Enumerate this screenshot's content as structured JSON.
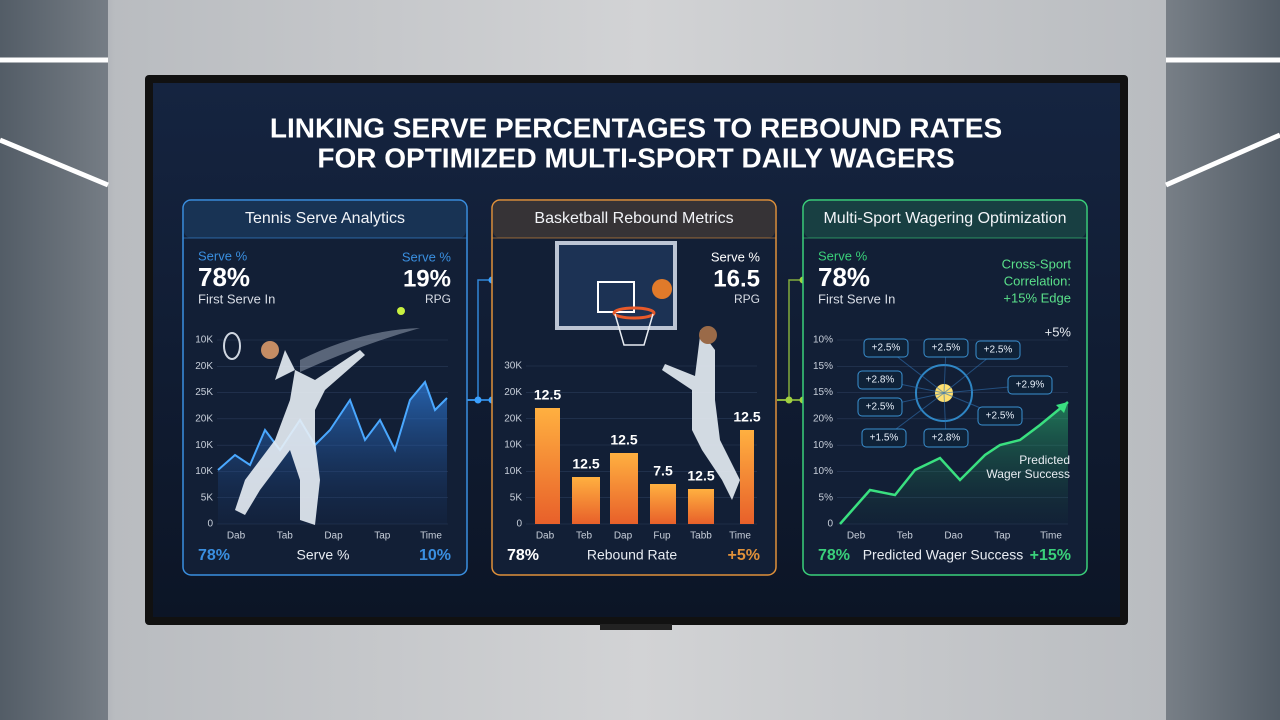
{
  "title": [
    "LINKING SERVE PERCENTAGES TO REBOUND RATES",
    "FOR OPTIMIZED MULTI-SPORT DAILY WAGERS"
  ],
  "panels": [
    {
      "header": "Tennis Serve Analytics",
      "left_stat": {
        "label": "Serve %",
        "value": "78%",
        "caption": "First Serve In"
      },
      "right_stat": {
        "label": "Serve %",
        "value": "19%",
        "caption": "RPG"
      },
      "y_axis": [
        "10K",
        "20K",
        "25K",
        "20K",
        "10K",
        "10K",
        "5K",
        "0"
      ],
      "x_axis": [
        "Dab",
        "Tab",
        "Dap",
        "Tap",
        "Time"
      ],
      "footer": {
        "left": "78%",
        "center": "Serve %",
        "right": "10%"
      }
    },
    {
      "header": "Basketball Rebound Metrics",
      "right_stat": {
        "label": "Serve %",
        "value": "16.5",
        "caption": "RPG"
      },
      "y_axis": [
        "30K",
        "20K",
        "20K",
        "10K",
        "10K",
        "5K",
        "0"
      ],
      "x_axis": [
        "Dab",
        "Teb",
        "Dap",
        "Fup",
        "Tabb",
        "Time"
      ],
      "bar_labels": [
        "12.5",
        "12.5",
        "12.5",
        "7.5",
        "12.5",
        "12.5"
      ],
      "footer": {
        "left": "78%",
        "center": "Rebound Rate",
        "right": "+5%"
      }
    },
    {
      "header": "Multi-Sport Wagering Optimization",
      "left_stat": {
        "label": "Serve %",
        "value": "78%",
        "caption": "First Serve In"
      },
      "side_note": [
        "Cross-Sport",
        "Correlation:",
        "+15% Edge"
      ],
      "corner_note": "+5%",
      "chips": [
        "+2.5%",
        "+2.5%",
        "+2.5%",
        "+2.8%",
        "+2.9%",
        "+2.5%",
        "+2.5%",
        "+1.5%",
        "+2.8%"
      ],
      "y_axis": [
        "10%",
        "15%",
        "15%",
        "20%",
        "10%",
        "10%",
        "5%",
        "0"
      ],
      "x_axis": [
        "Deb",
        "Teb",
        "Dao",
        "Tap",
        "Time"
      ],
      "chart_note": [
        "Predicted",
        "Wager Success"
      ],
      "footer": {
        "left": "78%",
        "center": "Predicted Wager Success",
        "right": "+15%"
      }
    }
  ]
}
